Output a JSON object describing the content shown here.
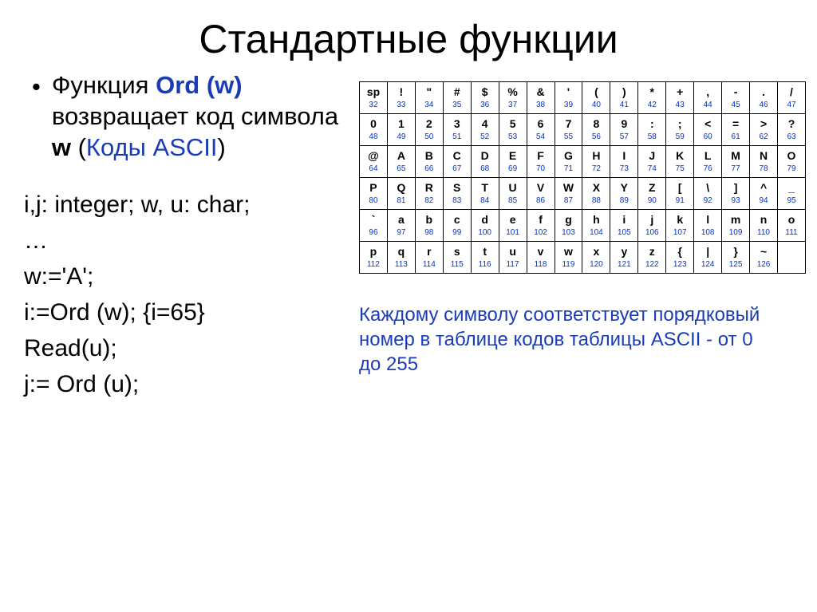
{
  "title": "Стандартные функции",
  "bullet": {
    "prefix": "Функция ",
    "func": "Ord (w)",
    "mid": " возвращает код символа ",
    "arg": "w",
    "paren_open": " (",
    "link": "Коды ASCII",
    "paren_close": ")"
  },
  "code": {
    "l1": "i,j: integer; w, u: char;",
    "l2": "…",
    "l3": "w:='A';",
    "l4": "i:=Ord (w); {i=65}",
    "l5": "Read(u);",
    "l6": "j:= Ord (u);"
  },
  "ascii": {
    "rows": [
      [
        [
          "sp",
          "32"
        ],
        [
          "!",
          "33"
        ],
        [
          "\"",
          "34"
        ],
        [
          "#",
          "35"
        ],
        [
          "$",
          "36"
        ],
        [
          "%",
          "37"
        ],
        [
          "&",
          "38"
        ],
        [
          "'",
          "39"
        ],
        [
          "(",
          "40"
        ],
        [
          ")",
          "41"
        ],
        [
          "*",
          "42"
        ],
        [
          "+",
          "43"
        ],
        [
          ",",
          "44"
        ],
        [
          "-",
          "45"
        ],
        [
          ".",
          "46"
        ],
        [
          "/",
          "47"
        ]
      ],
      [
        [
          "0",
          "48"
        ],
        [
          "1",
          "49"
        ],
        [
          "2",
          "50"
        ],
        [
          "3",
          "51"
        ],
        [
          "4",
          "52"
        ],
        [
          "5",
          "53"
        ],
        [
          "6",
          "54"
        ],
        [
          "7",
          "55"
        ],
        [
          "8",
          "56"
        ],
        [
          "9",
          "57"
        ],
        [
          ":",
          "58"
        ],
        [
          ";",
          "59"
        ],
        [
          "<",
          "60"
        ],
        [
          "=",
          "61"
        ],
        [
          ">",
          "62"
        ],
        [
          "?",
          "63"
        ]
      ],
      [
        [
          "@",
          "64"
        ],
        [
          "A",
          "65"
        ],
        [
          "B",
          "66"
        ],
        [
          "C",
          "67"
        ],
        [
          "D",
          "68"
        ],
        [
          "E",
          "69"
        ],
        [
          "F",
          "70"
        ],
        [
          "G",
          "71"
        ],
        [
          "H",
          "72"
        ],
        [
          "I",
          "73"
        ],
        [
          "J",
          "74"
        ],
        [
          "K",
          "75"
        ],
        [
          "L",
          "76"
        ],
        [
          "M",
          "77"
        ],
        [
          "N",
          "78"
        ],
        [
          "O",
          "79"
        ]
      ],
      [
        [
          "P",
          "80"
        ],
        [
          "Q",
          "81"
        ],
        [
          "R",
          "82"
        ],
        [
          "S",
          "83"
        ],
        [
          "T",
          "84"
        ],
        [
          "U",
          "85"
        ],
        [
          "V",
          "86"
        ],
        [
          "W",
          "87"
        ],
        [
          "X",
          "88"
        ],
        [
          "Y",
          "89"
        ],
        [
          "Z",
          "90"
        ],
        [
          "[",
          "91"
        ],
        [
          "\\",
          "92"
        ],
        [
          "]",
          "93"
        ],
        [
          "^",
          "94"
        ],
        [
          "_",
          "95"
        ]
      ],
      [
        [
          "`",
          "96"
        ],
        [
          "a",
          "97"
        ],
        [
          "b",
          "98"
        ],
        [
          "c",
          "99"
        ],
        [
          "d",
          "100"
        ],
        [
          "e",
          "101"
        ],
        [
          "f",
          "102"
        ],
        [
          "g",
          "103"
        ],
        [
          "h",
          "104"
        ],
        [
          "i",
          "105"
        ],
        [
          "j",
          "106"
        ],
        [
          "k",
          "107"
        ],
        [
          "l",
          "108"
        ],
        [
          "m",
          "109"
        ],
        [
          "n",
          "110"
        ],
        [
          "o",
          "111"
        ]
      ],
      [
        [
          "p",
          "112"
        ],
        [
          "q",
          "113"
        ],
        [
          "r",
          "114"
        ],
        [
          "s",
          "115"
        ],
        [
          "t",
          "116"
        ],
        [
          "u",
          "117"
        ],
        [
          "v",
          "118"
        ],
        [
          "w",
          "119"
        ],
        [
          "x",
          "120"
        ],
        [
          "y",
          "121"
        ],
        [
          "z",
          "122"
        ],
        [
          "{",
          "123"
        ],
        [
          "|",
          "124"
        ],
        [
          "}",
          "125"
        ],
        [
          "~",
          "126"
        ],
        [
          "",
          ""
        ]
      ]
    ]
  },
  "caption": "Каждому символу соответствует порядковый номер в таблице кодов таблицы ASCII - от 0 до 255"
}
